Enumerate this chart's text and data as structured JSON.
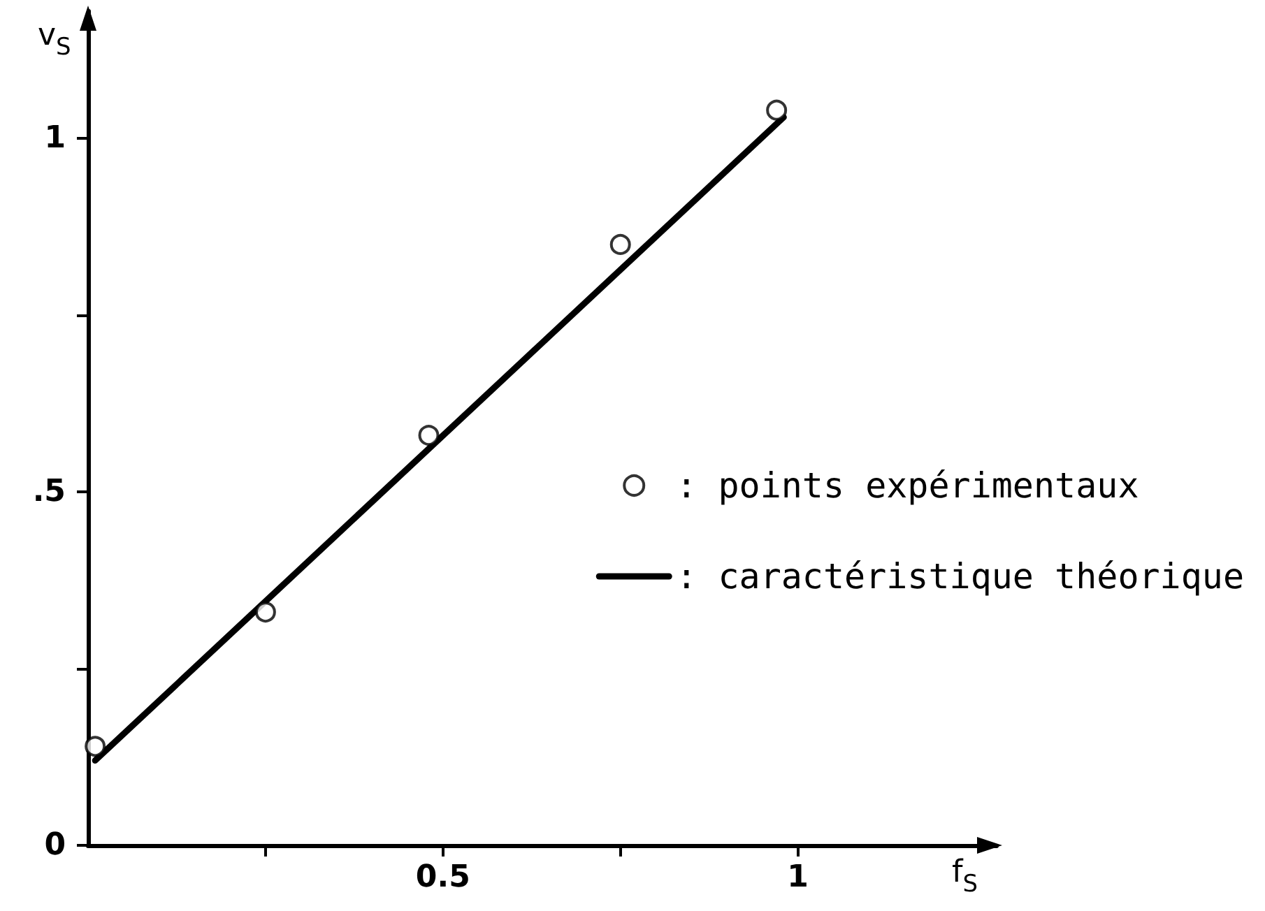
{
  "chart_data": {
    "type": "scatter",
    "xlabel": "f$_{S}$",
    "ylabel": "v$_{S}$",
    "xlim": [
      0,
      1.28
    ],
    "ylim": [
      0,
      1.18
    ],
    "xticks": [
      {
        "value": 0.25,
        "label": null
      },
      {
        "value": 0.5,
        "label": "0.5"
      },
      {
        "value": 0.75,
        "label": null
      },
      1
    ],
    "yticks": [
      0,
      {
        "value": 0.25,
        "label": null
      },
      {
        "value": 0.5,
        "label": ".5"
      },
      {
        "value": 0.75,
        "label": null
      },
      1
    ],
    "legend": "right",
    "series": [
      {
        "name": ": points expérimentaux",
        "type": "scatter",
        "color": "#000000",
        "marker": "circle",
        "x": [
          0.01,
          0.25,
          0.48,
          0.75,
          0.97
        ],
        "values": [
          0.14,
          0.33,
          0.58,
          0.85,
          1.04
        ]
      },
      {
        "name": ": caractéristique théorique",
        "type": "line",
        "color": "#000000",
        "marker": "none",
        "line_style": "solid",
        "x": [
          0.01,
          0.98
        ],
        "values": [
          0.12,
          1.03
        ]
      }
    ]
  }
}
